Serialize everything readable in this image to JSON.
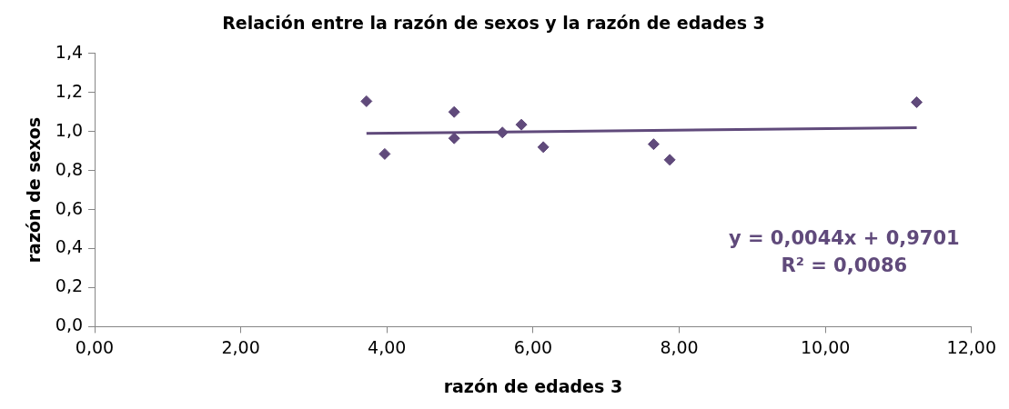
{
  "chart_data": {
    "type": "scatter",
    "title": "Relación entre la razón de sexos y la razón de edades 3",
    "xlabel": "razón de edades 3",
    "ylabel": "razón de sexos",
    "series": [
      {
        "type": "scatter",
        "color": "#604a7b",
        "x": [
          3.72,
          3.97,
          4.92,
          4.92,
          5.58,
          5.84,
          6.14,
          7.65,
          7.87,
          11.25
        ],
        "values": [
          1.155,
          0.885,
          1.1,
          0.965,
          0.995,
          1.035,
          0.92,
          0.935,
          0.855,
          1.15
        ]
      },
      {
        "type": "line",
        "color": "#604a7b",
        "x": [
          3.72,
          11.25
        ],
        "values": [
          0.99,
          1.02
        ],
        "marker": "none"
      }
    ],
    "marker": "diamond",
    "annotations": [
      "y = 0,0044x + 0,9701",
      "R² = 0,0086"
    ],
    "xlim": [
      0,
      12
    ],
    "xticks": [
      {
        "value": 0,
        "label": "0,00"
      },
      {
        "value": 2,
        "label": "2,00"
      },
      {
        "value": 4,
        "label": "4,00"
      },
      {
        "value": 6,
        "label": "6,00"
      },
      {
        "value": 8,
        "label": "8,00"
      },
      {
        "value": 10,
        "label": "10,00"
      },
      {
        "value": 12,
        "label": "12,00"
      }
    ],
    "ylim": [
      0,
      1.4
    ],
    "yticks": [
      {
        "value": 0,
        "label": "0,0"
      },
      {
        "value": 0.2,
        "label": "0,2"
      },
      {
        "value": 0.4,
        "label": "0,4"
      },
      {
        "value": 0.6,
        "label": "0,6"
      },
      {
        "value": 0.8,
        "label": "0,8"
      },
      {
        "value": 1,
        "label": "1,0"
      },
      {
        "value": 1.2,
        "label": "1,2"
      },
      {
        "value": 1.4,
        "label": "1,4"
      }
    ],
    "grid": false,
    "legend": false
  }
}
